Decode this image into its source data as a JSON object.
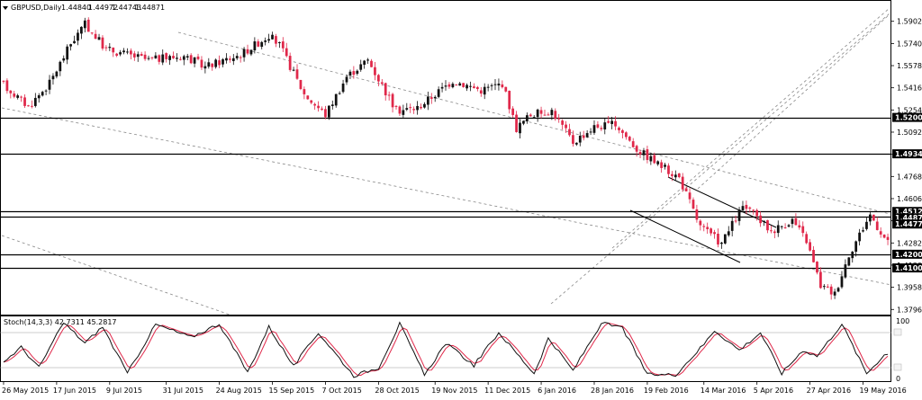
{
  "window": {
    "symbol_title": "GBPUSD,Daily",
    "ohlc": [
      "1.44840",
      "1.44972",
      "1.44743",
      "1.44871"
    ],
    "menu_icon": "triangle-down-icon"
  },
  "colors": {
    "bull": "#111111",
    "bear": "#e0284a",
    "stoch_main": "#111111",
    "stoch_signal": "#e0284a",
    "grid_line": "#000000",
    "trend_dashed": "#888888",
    "tag_bg": "#000000",
    "tag_text": "#ffffff"
  },
  "chart_data": [
    {
      "type": "candlestick",
      "title": "GBPUSD,Daily",
      "ylim": [
        1.3772,
        1.6045
      ],
      "y_ticks": [
        "1.59025",
        "1.57400",
        "1.55785",
        "1.54165",
        "1.52545",
        "1.50925",
        "1.49305",
        "1.47685",
        "1.46065",
        "1.44445",
        "1.42825",
        "1.41205",
        "1.39585",
        "1.37965"
      ],
      "price_tags": [
        "1.52000",
        "1.49340",
        "1.45127",
        "1.44871",
        "1.44777",
        "1.42000",
        "1.41000"
      ],
      "horizontal_levels": [
        1.52,
        1.4934,
        1.45127,
        1.44777,
        1.42,
        1.41
      ],
      "x_labels": [
        "26 May 2015",
        "17 Jun 2015",
        "9 Jul 2015",
        "31 Jul 2015",
        "24 Aug 2015",
        "15 Sep 2015",
        "7 Oct 2015",
        "28 Oct 2015",
        "19 Nov 2015",
        "11 Dec 2015",
        "6 Jan 2016",
        "28 Jan 2016",
        "19 Feb 2016",
        "14 Mar 2016",
        "5 Apr 2016",
        "27 Apr 2016",
        "19 May 2016"
      ],
      "candle_count": 251,
      "path_anchors": [
        [
          0,
          1.546
        ],
        [
          8,
          1.528
        ],
        [
          14,
          1.545
        ],
        [
          20,
          1.574
        ],
        [
          24,
          1.588
        ],
        [
          30,
          1.57
        ],
        [
          42,
          1.562
        ],
        [
          52,
          1.565
        ],
        [
          58,
          1.557
        ],
        [
          68,
          1.566
        ],
        [
          76,
          1.58
        ],
        [
          79,
          1.573
        ],
        [
          86,
          1.537
        ],
        [
          92,
          1.522
        ],
        [
          98,
          1.55
        ],
        [
          104,
          1.562
        ],
        [
          112,
          1.525
        ],
        [
          118,
          1.527
        ],
        [
          128,
          1.547
        ],
        [
          136,
          1.54
        ],
        [
          142,
          1.545
        ],
        [
          146,
          1.512
        ],
        [
          150,
          1.522
        ],
        [
          156,
          1.525
        ],
        [
          162,
          1.502
        ],
        [
          168,
          1.513
        ],
        [
          174,
          1.515
        ],
        [
          180,
          1.497
        ],
        [
          186,
          1.486
        ],
        [
          192,
          1.476
        ],
        [
          198,
          1.44
        ],
        [
          204,
          1.428
        ],
        [
          210,
          1.455
        ],
        [
          214,
          1.447
        ],
        [
          218,
          1.437
        ],
        [
          224,
          1.445
        ],
        [
          228,
          1.43
        ],
        [
          232,
          1.397
        ],
        [
          236,
          1.391
        ],
        [
          240,
          1.42
        ],
        [
          246,
          1.449
        ],
        [
          252,
          1.424
        ]
      ]
    },
    {
      "type": "line",
      "title": "Stoch(14,3,3) 42.7311 45.2817",
      "ylim": [
        0,
        100
      ],
      "levels": [
        80,
        20
      ],
      "y_ticks": [
        "100",
        "0"
      ],
      "series": [
        {
          "name": "main",
          "last": 42.7311
        },
        {
          "name": "signal",
          "last": 45.2817
        }
      ],
      "peak_troughs": [
        [
          0,
          30
        ],
        [
          5,
          55
        ],
        [
          10,
          20
        ],
        [
          17,
          97
        ],
        [
          23,
          62
        ],
        [
          28,
          90
        ],
        [
          35,
          10
        ],
        [
          43,
          94
        ],
        [
          53,
          72
        ],
        [
          61,
          95
        ],
        [
          69,
          12
        ],
        [
          75,
          90
        ],
        [
          82,
          22
        ],
        [
          89,
          80
        ],
        [
          99,
          6
        ],
        [
          106,
          20
        ],
        [
          112,
          95
        ],
        [
          119,
          7
        ],
        [
          125,
          62
        ],
        [
          133,
          24
        ],
        [
          140,
          80
        ],
        [
          150,
          10
        ],
        [
          154,
          70
        ],
        [
          161,
          15
        ],
        [
          169,
          96
        ],
        [
          175,
          88
        ],
        [
          182,
          8
        ],
        [
          190,
          8
        ],
        [
          198,
          60
        ],
        [
          201,
          84
        ],
        [
          208,
          50
        ],
        [
          214,
          80
        ],
        [
          220,
          10
        ],
        [
          226,
          50
        ],
        [
          230,
          40
        ],
        [
          237,
          95
        ],
        [
          244,
          10
        ],
        [
          249,
          42
        ],
        [
          251,
          43
        ]
      ]
    }
  ]
}
